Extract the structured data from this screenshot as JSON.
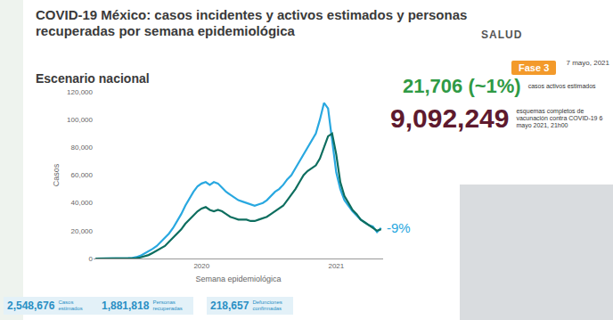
{
  "chart_data": {
    "type": "line",
    "title": "COVID-19 México: casos incidentes y activos estimados y personas recuperadas por semana epidemiológica",
    "subtitle": "Escenario nacional",
    "xlabel": "Semana epidemiológica",
    "ylabel": "Casos",
    "categories": [
      null,
      null,
      null,
      null,
      null,
      null,
      null,
      null,
      null,
      null,
      null,
      null,
      null,
      null,
      null,
      null,
      null,
      null,
      null,
      null,
      null,
      null,
      null,
      null,
      null,
      null,
      "2020",
      null,
      null,
      null,
      null,
      null,
      null,
      null,
      null,
      null,
      null,
      null,
      null,
      null,
      null,
      null,
      null,
      null,
      null,
      null,
      null,
      null,
      null,
      null,
      null,
      null,
      null,
      null,
      null,
      null,
      null,
      null,
      null,
      "2021",
      null,
      null,
      null,
      null,
      null,
      null,
      null,
      null,
      null,
      null,
      null
    ],
    "series": [
      {
        "color": "#29a8e0",
        "values": [
          0,
          0,
          0,
          0,
          0,
          0,
          0,
          0,
          200,
          500,
          1000,
          2000,
          3500,
          5000,
          7000,
          9000,
          12000,
          15000,
          18000,
          22000,
          27000,
          32000,
          38000,
          43000,
          48000,
          52000,
          54000,
          55000,
          53000,
          55000,
          54000,
          51000,
          48000,
          46000,
          44000,
          42000,
          41000,
          40000,
          39000,
          38000,
          39000,
          40000,
          42000,
          45000,
          48000,
          50000,
          53000,
          57000,
          60000,
          65000,
          70000,
          75000,
          80000,
          85000,
          90000,
          100000,
          112000,
          108000,
          85000,
          62000,
          50000,
          42000,
          38000,
          34000,
          31000,
          28000,
          26000,
          24000,
          23000,
          19000,
          22000
        ]
      },
      {
        "color": "#0e6e5f",
        "values": [
          0,
          0,
          0,
          0,
          0,
          0,
          0,
          0,
          0,
          0,
          300,
          800,
          1500,
          2500,
          4000,
          5500,
          7000,
          9000,
          12000,
          15000,
          18000,
          21000,
          25000,
          28000,
          31000,
          34000,
          36000,
          37000,
          35000,
          34000,
          35000,
          34000,
          32000,
          30000,
          29000,
          28000,
          28000,
          28000,
          27000,
          27000,
          28000,
          29000,
          30000,
          32000,
          34000,
          36000,
          38000,
          42000,
          46000,
          50000,
          55000,
          60000,
          63000,
          65000,
          67000,
          72000,
          80000,
          88000,
          90000,
          75000,
          55000,
          45000,
          40000,
          35000,
          32000,
          28000,
          26000,
          24000,
          22000,
          20000,
          21000
        ]
      }
    ],
    "ylim": [
      0,
      120000
    ],
    "yticks": [
      0,
      {
        "value": 20000,
        "label": "20,000"
      },
      {
        "value": 40000,
        "label": "40,000"
      },
      {
        "value": 60000,
        "label": "60,000"
      },
      {
        "value": 80000,
        "label": "80,000"
      },
      {
        "value": 100000,
        "label": "100,000"
      },
      {
        "value": 120000,
        "label": "120,000"
      }
    ],
    "grid": false,
    "annotations": [
      {
        "text": "-9%"
      }
    ]
  },
  "page": {
    "logo": "SALUD",
    "phase": "Fase 3",
    "date": "7 mayo, 2021",
    "indicators": [
      {
        "value": "21,706 (~1%)",
        "label": "casos activos estimados",
        "color": "#2f9a45"
      },
      {
        "value": "9,092,249",
        "label": "esquemas completos de vacunación contra COVID-19 6 mayo 2021, 21h00",
        "color": "#5e1a2e"
      }
    ],
    "stats": [
      {
        "value": "2,548,676",
        "label": "Casos estimados"
      },
      {
        "value": "1,881,818",
        "label": "Personas recuperadas"
      },
      {
        "value": "218,657",
        "label": "Defunciones confirmadas"
      }
    ]
  }
}
